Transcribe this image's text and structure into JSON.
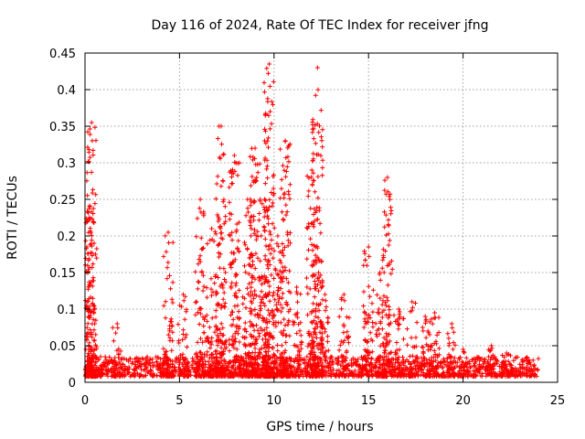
{
  "chart_data": {
    "type": "scatter",
    "title": "Day 116 of 2024, Rate Of TEC Index for receiver jfng",
    "xlabel": "GPS time / hours",
    "ylabel": "ROTI / TECUs",
    "xlim": [
      0,
      25
    ],
    "ylim": [
      0,
      0.45
    ],
    "xticks": [
      0,
      5,
      10,
      15,
      20,
      25
    ],
    "yticks": [
      0,
      0.05,
      0.1,
      0.15,
      0.2,
      0.25,
      0.3,
      0.35,
      0.4,
      0.45
    ],
    "xtick_labels": [
      "0",
      "5",
      "10",
      "15",
      "20",
      "25"
    ],
    "ytick_labels": [
      "0",
      "0.05",
      "0.1",
      "0.15",
      "0.2",
      "0.25",
      "0.3",
      "0.35",
      "0.4",
      "0.45"
    ],
    "grid": true,
    "marker": "+",
    "color": "#ff0000",
    "baseline": {
      "x_start": 0,
      "x_end": 24,
      "low": 0.008,
      "high": 0.035
    },
    "bursts": [
      {
        "x": 0.1,
        "peak": 0.11
      },
      {
        "x": 0.25,
        "peak": 0.24
      },
      {
        "x": 0.35,
        "peak": 0.355
      },
      {
        "x": 1.7,
        "peak": 0.08
      },
      {
        "x": 4.4,
        "peak": 0.205
      },
      {
        "x": 5.2,
        "peak": 0.12
      },
      {
        "x": 6.1,
        "peak": 0.25
      },
      {
        "x": 6.7,
        "peak": 0.21
      },
      {
        "x": 7.2,
        "peak": 0.35
      },
      {
        "x": 7.9,
        "peak": 0.31
      },
      {
        "x": 8.6,
        "peak": 0.25
      },
      {
        "x": 9.0,
        "peak": 0.32
      },
      {
        "x": 9.5,
        "peak": 0.25
      },
      {
        "x": 9.75,
        "peak": 0.435
      },
      {
        "x": 10.2,
        "peak": 0.2
      },
      {
        "x": 10.6,
        "peak": 0.33
      },
      {
        "x": 11.2,
        "peak": 0.13
      },
      {
        "x": 12.0,
        "peak": 0.29
      },
      {
        "x": 12.3,
        "peak": 0.43
      },
      {
        "x": 12.7,
        "peak": 0.12
      },
      {
        "x": 13.7,
        "peak": 0.12
      },
      {
        "x": 15.0,
        "peak": 0.185
      },
      {
        "x": 15.6,
        "peak": 0.15
      },
      {
        "x": 16.0,
        "peak": 0.28
      },
      {
        "x": 16.6,
        "peak": 0.1
      },
      {
        "x": 17.3,
        "peak": 0.11
      },
      {
        "x": 18.0,
        "peak": 0.09
      },
      {
        "x": 18.5,
        "peak": 0.095
      },
      {
        "x": 19.4,
        "peak": 0.08
      },
      {
        "x": 20.0,
        "peak": 0.045
      },
      {
        "x": 21.5,
        "peak": 0.05
      },
      {
        "x": 22.3,
        "peak": 0.04
      }
    ]
  }
}
